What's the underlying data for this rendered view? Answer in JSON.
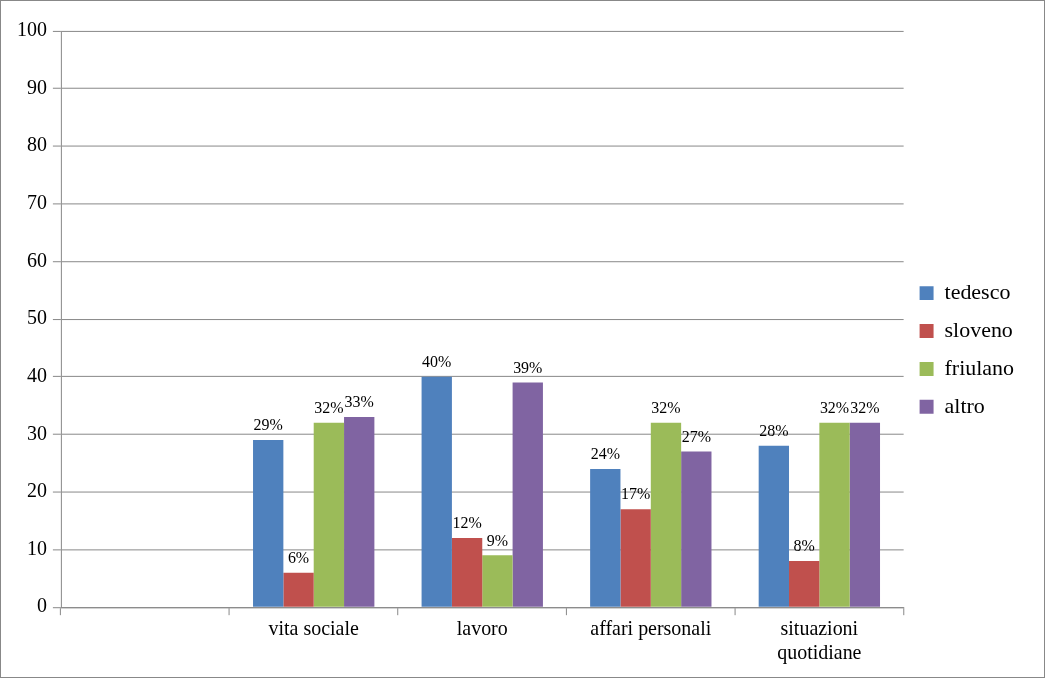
{
  "chart_data": {
    "type": "bar",
    "categories": [
      null,
      "vita sociale",
      "lavoro",
      "affari personali",
      "situazioni quotidiane"
    ],
    "series": [
      {
        "name": "tedesco",
        "color": "#4f81bd",
        "values": [
          null,
          29,
          40,
          24,
          28
        ],
        "value_labels": [
          null,
          "29%",
          "40%",
          "24%",
          "28%"
        ]
      },
      {
        "name": "sloveno",
        "color": "#c0504d",
        "values": [
          null,
          6,
          12,
          17,
          8
        ],
        "value_labels": [
          null,
          "6%",
          "12%",
          "17%",
          "8%"
        ]
      },
      {
        "name": "friulano",
        "color": "#9bbb59",
        "values": [
          null,
          32,
          9,
          32,
          32
        ],
        "value_labels": [
          null,
          "32%",
          "9%",
          "32%",
          "32%"
        ]
      },
      {
        "name": "altro",
        "color": "#8064a2",
        "values": [
          null,
          33,
          39,
          27,
          32
        ],
        "value_labels": [
          null,
          "33%",
          "39%",
          "27%",
          "32%"
        ]
      }
    ],
    "ylim": [
      0,
      100
    ],
    "yticks": [
      0,
      10,
      20,
      30,
      40,
      50,
      60,
      70,
      80,
      90,
      100
    ],
    "grid": "y",
    "legend": "right"
  }
}
